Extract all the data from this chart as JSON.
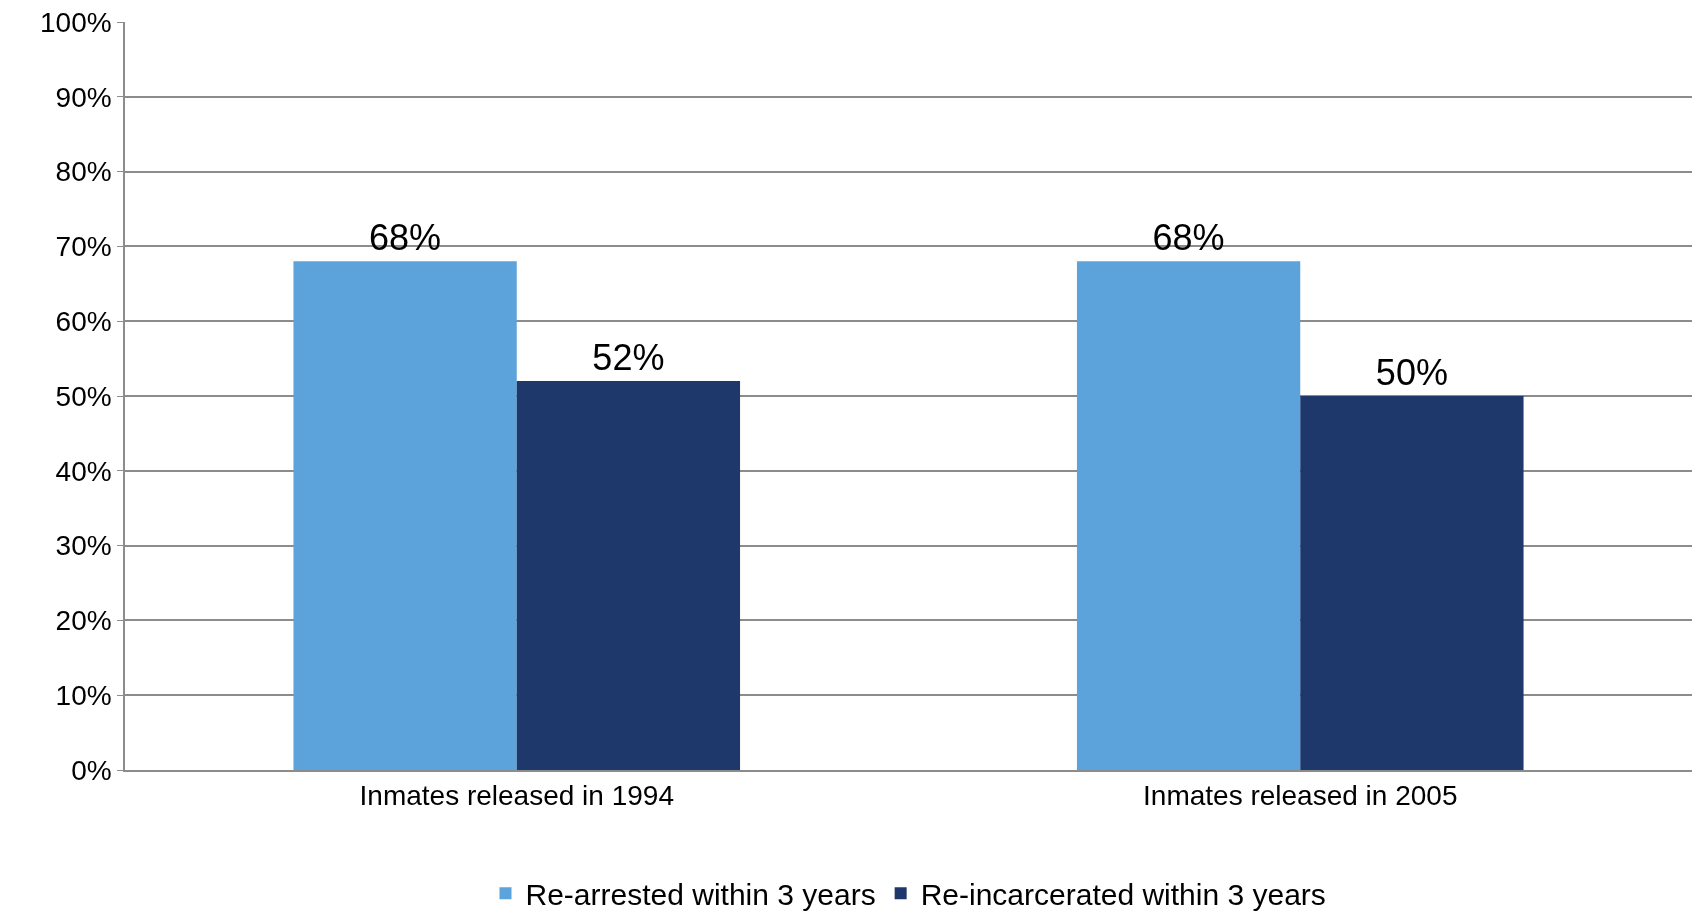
{
  "chart_data": {
    "type": "bar",
    "categories": [
      "Inmates released in 1994",
      "Inmates released in 2005"
    ],
    "series": [
      {
        "name": "Re-arrested within 3 years",
        "color": "#5ba3da",
        "values": [
          68,
          68
        ],
        "value_labels": [
          "68%",
          "68%"
        ]
      },
      {
        "name": "Re-incarcerated within 3 years",
        "color": "#1f386b",
        "values": [
          52,
          50
        ],
        "value_labels": [
          "52%",
          "50%"
        ]
      }
    ],
    "ylim": [
      0,
      100
    ],
    "yticks": [
      {
        "value": 0,
        "label": "0%"
      },
      {
        "value": 10,
        "label": "10%"
      },
      {
        "value": 20,
        "label": "20%"
      },
      {
        "value": 30,
        "label": "30%"
      },
      {
        "value": 40,
        "label": "40%"
      },
      {
        "value": 50,
        "label": "50%"
      },
      {
        "value": 60,
        "label": "60%"
      },
      {
        "value": 70,
        "label": "70%"
      },
      {
        "value": 80,
        "label": "80%"
      },
      {
        "value": 90,
        "label": "90%"
      },
      {
        "value": 100,
        "label": "100%"
      }
    ],
    "grid": "y",
    "legend": "bottom"
  }
}
